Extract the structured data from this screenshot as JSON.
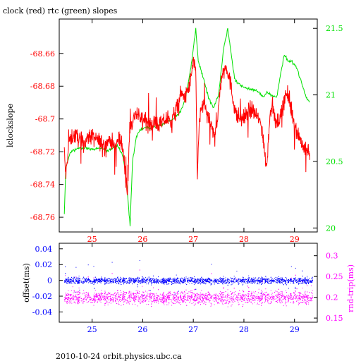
{
  "title": "clock (red) rtc (green) slopes",
  "footer": "2010-10-24 orbit.physics.ubc.ca",
  "colors": {
    "red": "#ff0000",
    "green": "#00e000",
    "blue": "#0000ff",
    "magenta": "#ff00ff",
    "axis": "#000000"
  },
  "chart_data": [
    {
      "type": "line",
      "title": "clock (red) rtc (green) slopes",
      "xlim": [
        24.35,
        29.45
      ],
      "x_ticks": [
        25,
        26,
        27,
        28,
        29
      ],
      "x_tick_labels": [
        "25",
        "26",
        "27",
        "28",
        "29"
      ],
      "y_left": {
        "label": "lclockslope",
        "lim": [
          -68.769,
          -68.639
        ],
        "ticks": [
          -68.76,
          -68.74,
          -68.72,
          -68.7,
          -68.68,
          -68.66
        ],
        "tick_labels": [
          "-68.76",
          "-68.74",
          "-68.72",
          "-68.7",
          "-68.68",
          "-68.66"
        ]
      },
      "y_right": {
        "label": "",
        "lim": [
          19.97,
          21.57
        ],
        "ticks": [
          20,
          20.5,
          21,
          21.5
        ],
        "tick_labels": [
          "20",
          "20.5",
          "21",
          "21.5"
        ]
      },
      "series": [
        {
          "color": "red",
          "axis": "left",
          "x": [
            24.45,
            24.48,
            24.55,
            24.65,
            24.75,
            24.85,
            24.95,
            25.05,
            25.15,
            25.25,
            25.35,
            25.45,
            25.55,
            25.62,
            25.7,
            25.75,
            25.8,
            25.85,
            25.95,
            26.05,
            26.15,
            26.25,
            26.35,
            26.45,
            26.55,
            26.65,
            26.75,
            26.85,
            26.95,
            27.0,
            27.05,
            27.08,
            27.12,
            27.2,
            27.3,
            27.4,
            27.48,
            27.55,
            27.65,
            27.72,
            27.78,
            27.85,
            27.95,
            28.05,
            28.15,
            28.25,
            28.35,
            28.45,
            28.5,
            28.55,
            28.65,
            28.75,
            28.82,
            28.88,
            28.95,
            29.05,
            29.15,
            29.22,
            29.3
          ],
          "y": [
            -68.72,
            -68.735,
            -68.712,
            -68.71,
            -68.712,
            -68.715,
            -68.71,
            -68.712,
            -68.714,
            -68.716,
            -68.712,
            -68.718,
            -68.71,
            -68.722,
            -68.745,
            -68.7,
            -68.703,
            -68.697,
            -68.7,
            -68.7,
            -68.704,
            -68.702,
            -68.704,
            -68.7,
            -68.702,
            -68.696,
            -68.685,
            -68.687,
            -68.676,
            -68.665,
            -68.672,
            -68.735,
            -68.7,
            -68.69,
            -68.7,
            -68.71,
            -68.7,
            -68.675,
            -68.667,
            -68.676,
            -68.687,
            -68.698,
            -68.7,
            -68.697,
            -68.694,
            -68.698,
            -68.704,
            -68.73,
            -68.703,
            -68.69,
            -68.705,
            -68.695,
            -68.684,
            -68.688,
            -68.696,
            -68.708,
            -68.715,
            -68.72,
            -68.72
          ]
        },
        {
          "color": "green",
          "axis": "right",
          "x": [
            24.45,
            24.48,
            24.55,
            24.6,
            24.75,
            24.9,
            25.05,
            25.2,
            25.3,
            25.4,
            25.5,
            25.6,
            25.65,
            25.7,
            25.75,
            25.8,
            25.87,
            25.95,
            26.05,
            26.2,
            26.4,
            26.6,
            26.75,
            26.85,
            26.95,
            27.0,
            27.05,
            27.1,
            27.2,
            27.3,
            27.4,
            27.5,
            27.6,
            27.68,
            27.75,
            27.82,
            27.9,
            28.0,
            28.15,
            28.3,
            28.38,
            28.45,
            28.55,
            28.65,
            28.72,
            28.8,
            28.88,
            28.95,
            29.05,
            29.15,
            29.25,
            29.3
          ],
          "y": [
            20.1,
            20.45,
            20.55,
            20.58,
            20.6,
            20.6,
            20.59,
            20.6,
            20.58,
            20.6,
            20.62,
            20.55,
            20.45,
            20.25,
            20.02,
            20.5,
            20.68,
            20.74,
            20.75,
            20.76,
            20.78,
            20.82,
            20.88,
            20.98,
            21.2,
            21.35,
            21.5,
            21.25,
            21.12,
            20.98,
            20.9,
            21.0,
            21.35,
            21.5,
            21.3,
            21.12,
            21.08,
            21.06,
            21.04,
            21.02,
            20.98,
            21.02,
            21.0,
            20.98,
            21.15,
            21.3,
            21.25,
            21.25,
            21.2,
            21.08,
            20.97,
            20.95
          ]
        }
      ]
    },
    {
      "type": "scatter",
      "xlim": [
        24.35,
        29.45
      ],
      "x_ticks": [
        25,
        26,
        27,
        28,
        29
      ],
      "x_tick_labels": [
        "25",
        "26",
        "27",
        "28",
        "29"
      ],
      "y_left": {
        "label": "offset(ms)",
        "lim": [
          -0.053,
          0.047
        ],
        "ticks": [
          -0.04,
          -0.02,
          0,
          0.02,
          0.04
        ],
        "tick_labels": [
          "-0.04",
          "-0.02",
          "0",
          "0.02",
          "0.04"
        ]
      },
      "y_right": {
        "label": "rnd-trip(ms)",
        "lim": [
          0.14,
          0.33
        ],
        "ticks": [
          0.15,
          0.2,
          0.25,
          0.3
        ],
        "tick_labels": [
          "0.15",
          "0.2",
          "0.25",
          "0.3"
        ]
      },
      "series": [
        {
          "color": "blue",
          "axis": "left",
          "x_range": [
            24.45,
            29.35
          ],
          "center": 0.0,
          "spread": 0.007
        },
        {
          "color": "magenta",
          "axis": "right",
          "x_range": [
            24.45,
            29.35
          ],
          "center": 0.2,
          "spread": 0.03
        }
      ]
    }
  ]
}
